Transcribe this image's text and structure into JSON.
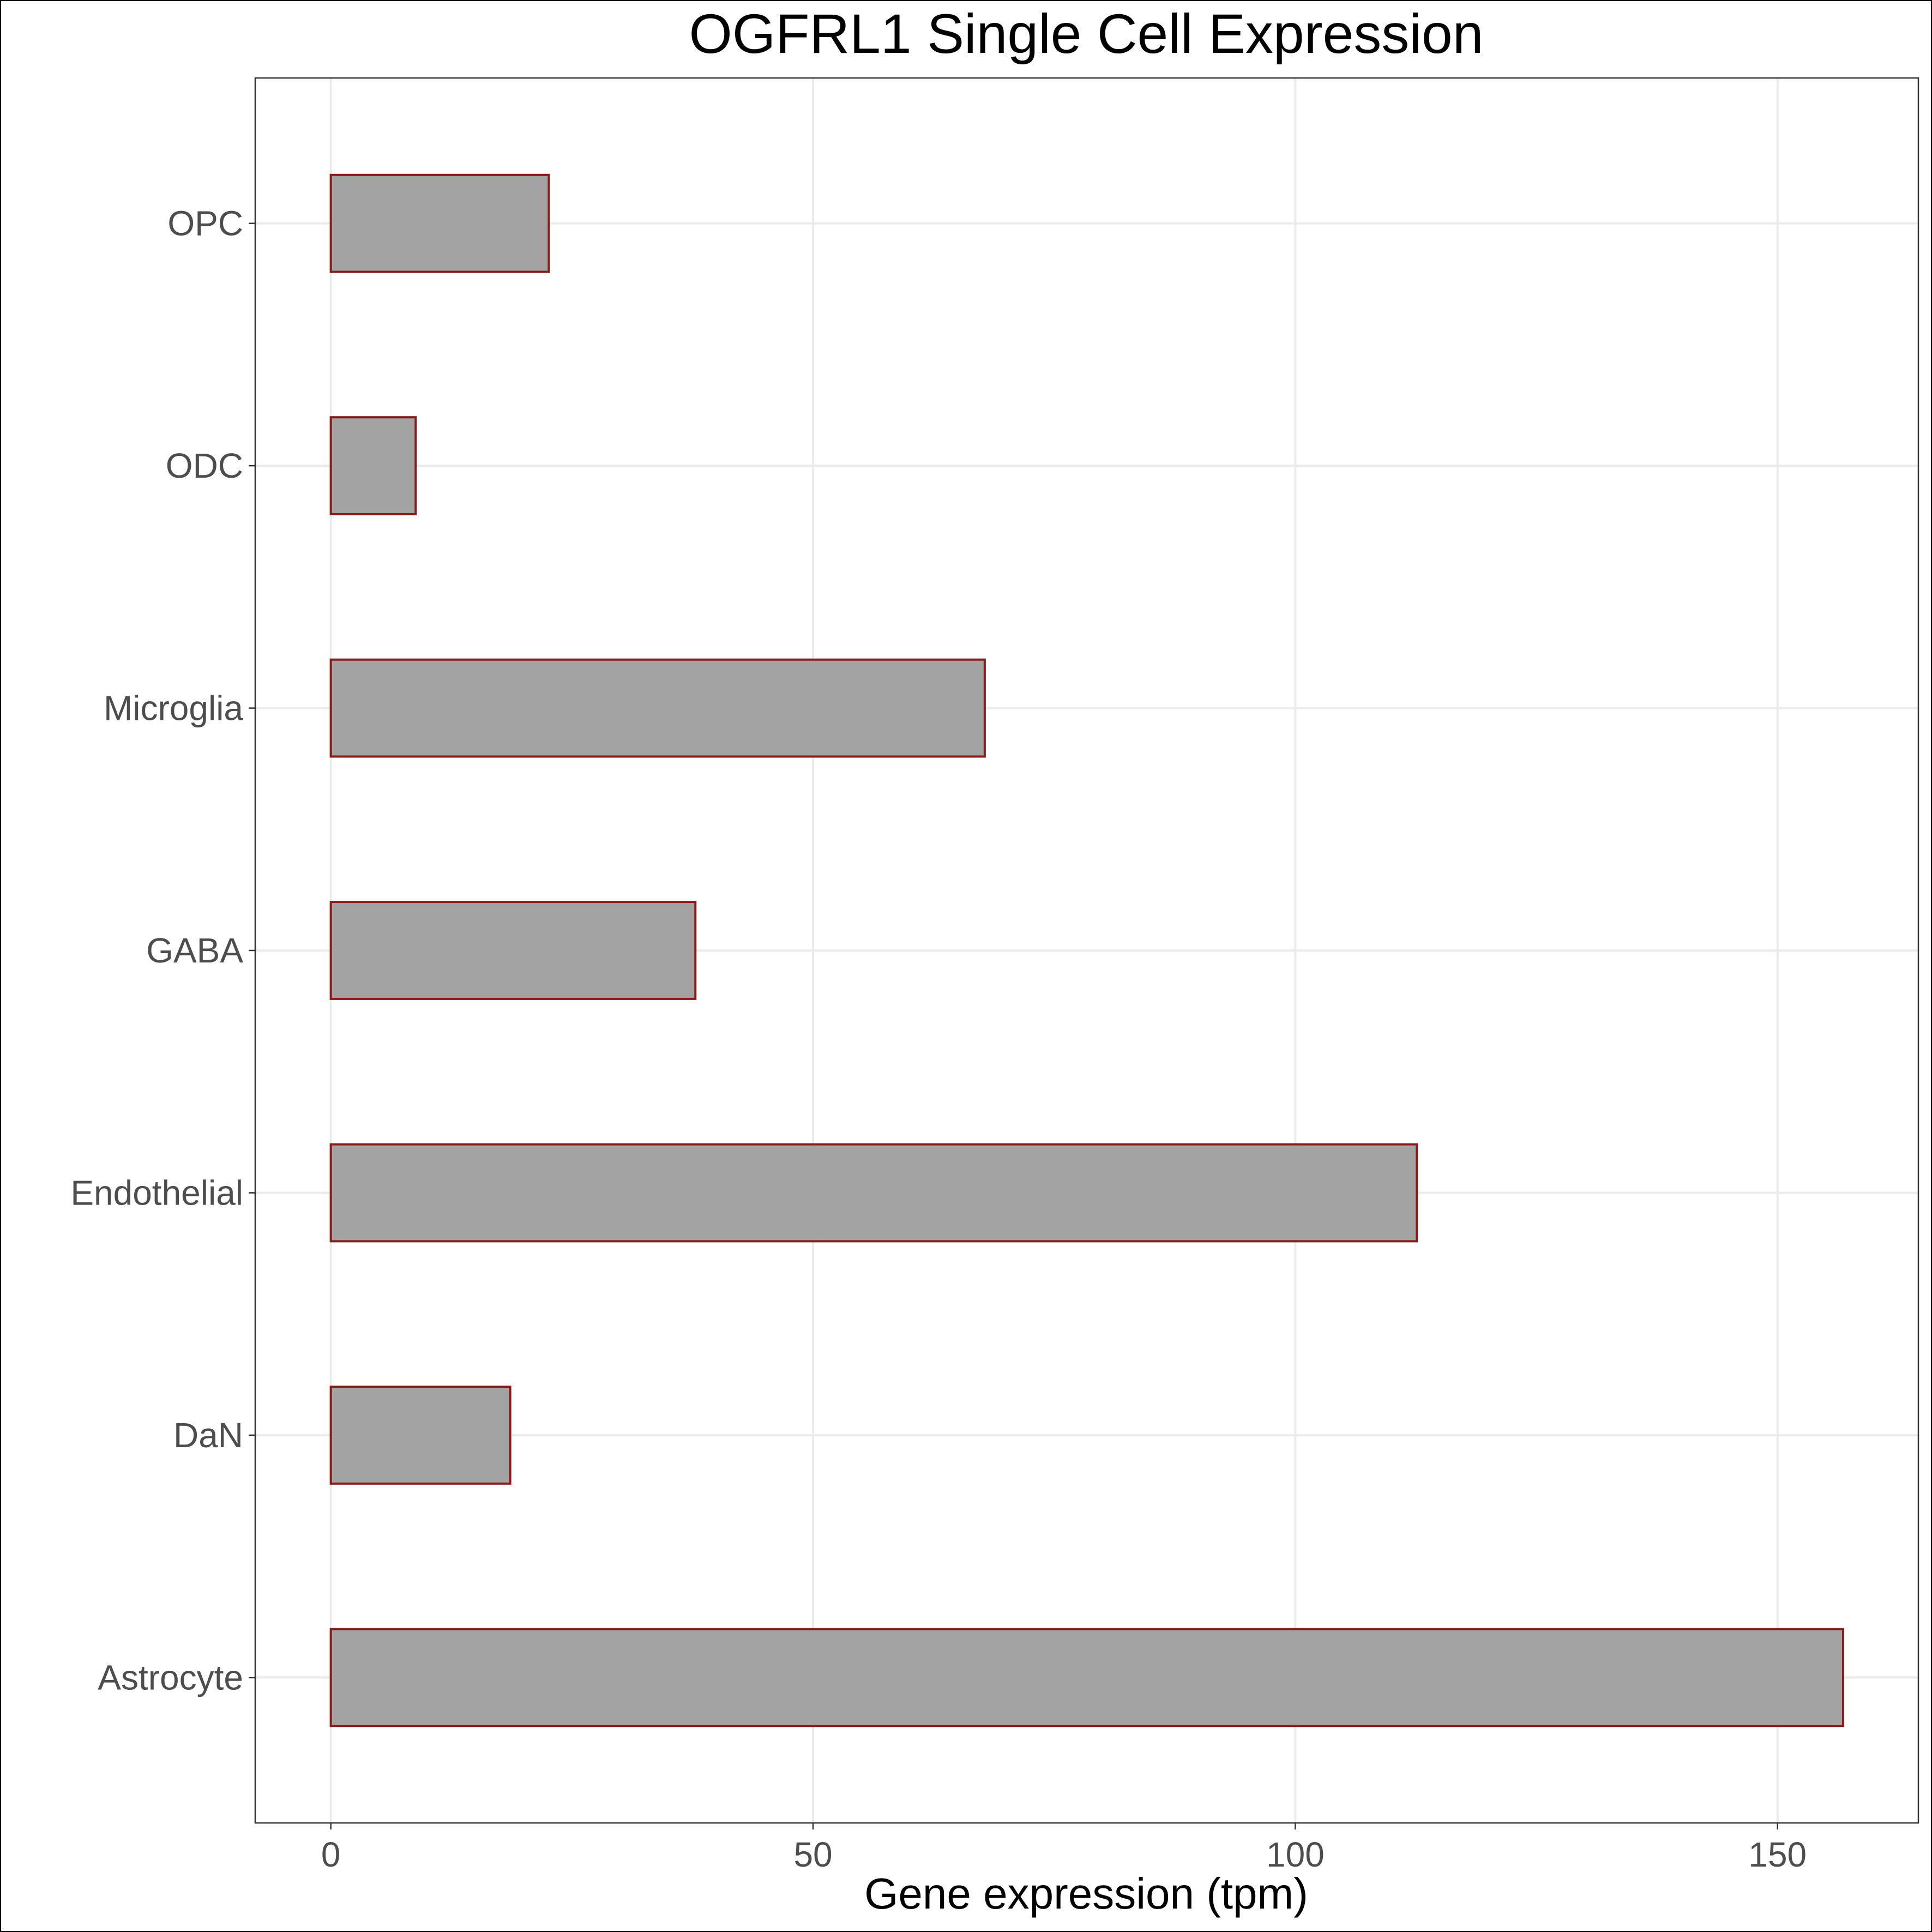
{
  "chart_data": {
    "type": "bar",
    "orientation": "horizontal",
    "title": "OGFRL1 Single Cell Expression",
    "xlabel": "Gene expression (tpm)",
    "ylabel": "",
    "categories": [
      "Astrocyte",
      "DaN",
      "Endothelial",
      "GABA",
      "Microglia",
      "ODC",
      "OPC"
    ],
    "values": [
      156.8,
      18.6,
      112.6,
      37.8,
      67.8,
      8.8,
      22.6
    ],
    "xlim": [
      -7.84,
      164.6
    ],
    "xticks": [
      0,
      50,
      100,
      150
    ],
    "grid": true,
    "legend": "none",
    "colors": {
      "bar_fill": "#a3a3a3",
      "bar_stroke": "#8b1a1a",
      "grid": "#ebebeb",
      "panel_border": "#333333",
      "tick_text": "#4d4d4d"
    }
  }
}
